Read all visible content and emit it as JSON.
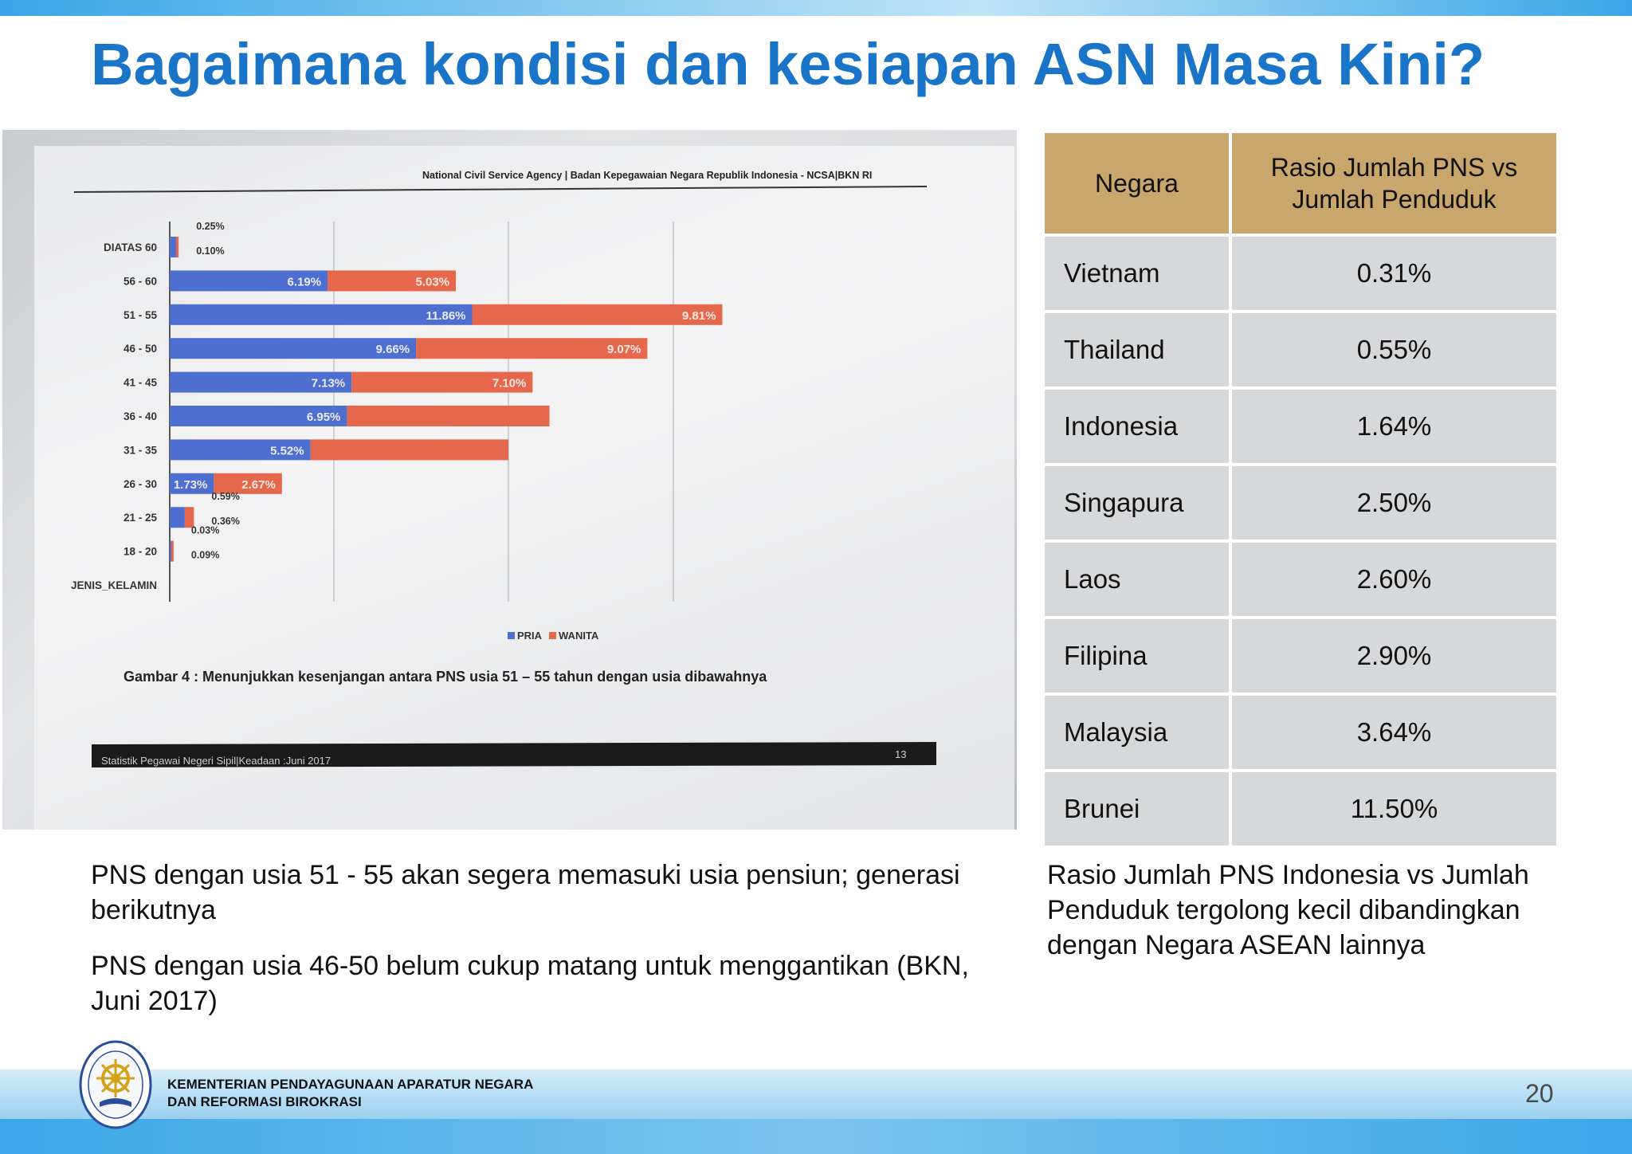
{
  "slide": {
    "title": "Bagaimana kondisi dan kesiapan ASN Masa Kini?",
    "page_number": "20",
    "footer_org_line1": "KEMENTERIAN PENDAYAGUNAAN APARATUR NEGARA",
    "footer_org_line2": "DAN REFORMASI BIROKRASI"
  },
  "photo": {
    "header": "National Civil Service Agency | Badan Kepegawaian Negara Republik Indonesia  - NCSA|BKN RI",
    "caption": "Gambar 4 :  Menunjukkan kesenjangan antara PNS usia 51 – 55 tahun dengan usia dibawahnya",
    "footer_left": "Statistik Pegawai Negeri Sipil|Keadaan :Juni 2017",
    "footer_page": "13"
  },
  "chart_data": {
    "type": "bar",
    "orientation": "horizontal",
    "stacked": true,
    "categories": [
      "DIATAS 60",
      "56 - 60",
      "51 - 55",
      "46 - 50",
      "41 - 45",
      "36 - 40",
      "31 - 35",
      "26 - 30",
      "21 - 25",
      "18 - 20",
      "JENIS_KELAMIN"
    ],
    "series": [
      {
        "name": "PRIA",
        "color": "#4f6fd0",
        "values": [
          0.25,
          6.19,
          11.86,
          9.66,
          7.13,
          6.95,
          5.52,
          1.73,
          0.59,
          0.03,
          null
        ],
        "labels": [
          "0.25%",
          "6.19%",
          "11.86%",
          "9.66%",
          "7.13%",
          "6.95%",
          "5.52%",
          "1.73%",
          "0.59%",
          "0.03%",
          ""
        ]
      },
      {
        "name": "WANITA",
        "color": "#e5684c",
        "values": [
          0.1,
          5.03,
          9.81,
          9.07,
          7.1,
          7.94,
          7.76,
          2.67,
          0.36,
          0.09,
          null
        ],
        "labels": [
          "0.10%",
          "5.03%",
          "9.81%",
          "9.07%",
          "7.10%",
          "",
          "",
          "2.67%",
          "0.36%",
          "0.09%",
          ""
        ]
      }
    ],
    "legend_position": "bottom",
    "grid": true
  },
  "table": {
    "headers": [
      "Negara",
      "Rasio Jumlah PNS vs Jumlah Penduduk"
    ],
    "rows": [
      {
        "country": "Vietnam",
        "ratio": "0.31%"
      },
      {
        "country": "Thailand",
        "ratio": "0.55%"
      },
      {
        "country": "Indonesia",
        "ratio": "1.64%"
      },
      {
        "country": "Singapura",
        "ratio": "2.50%"
      },
      {
        "country": "Laos",
        "ratio": "2.60%"
      },
      {
        "country": "Filipina",
        "ratio": "2.90%"
      },
      {
        "country": "Malaysia",
        "ratio": "3.64%"
      },
      {
        "country": "Brunei",
        "ratio": "11.50%"
      }
    ]
  },
  "notes": {
    "left_p1": "PNS dengan usia 51 - 55 akan segera memasuki usia pensiun; generasi berikutnya",
    "left_p2": "PNS dengan usia 46-50 belum cukup matang untuk menggantikan (BKN, Juni 2017)",
    "right": "Rasio Jumlah PNS Indonesia vs Jumlah Penduduk tergolong kecil dibandingkan dengan Negara ASEAN lainnya"
  }
}
